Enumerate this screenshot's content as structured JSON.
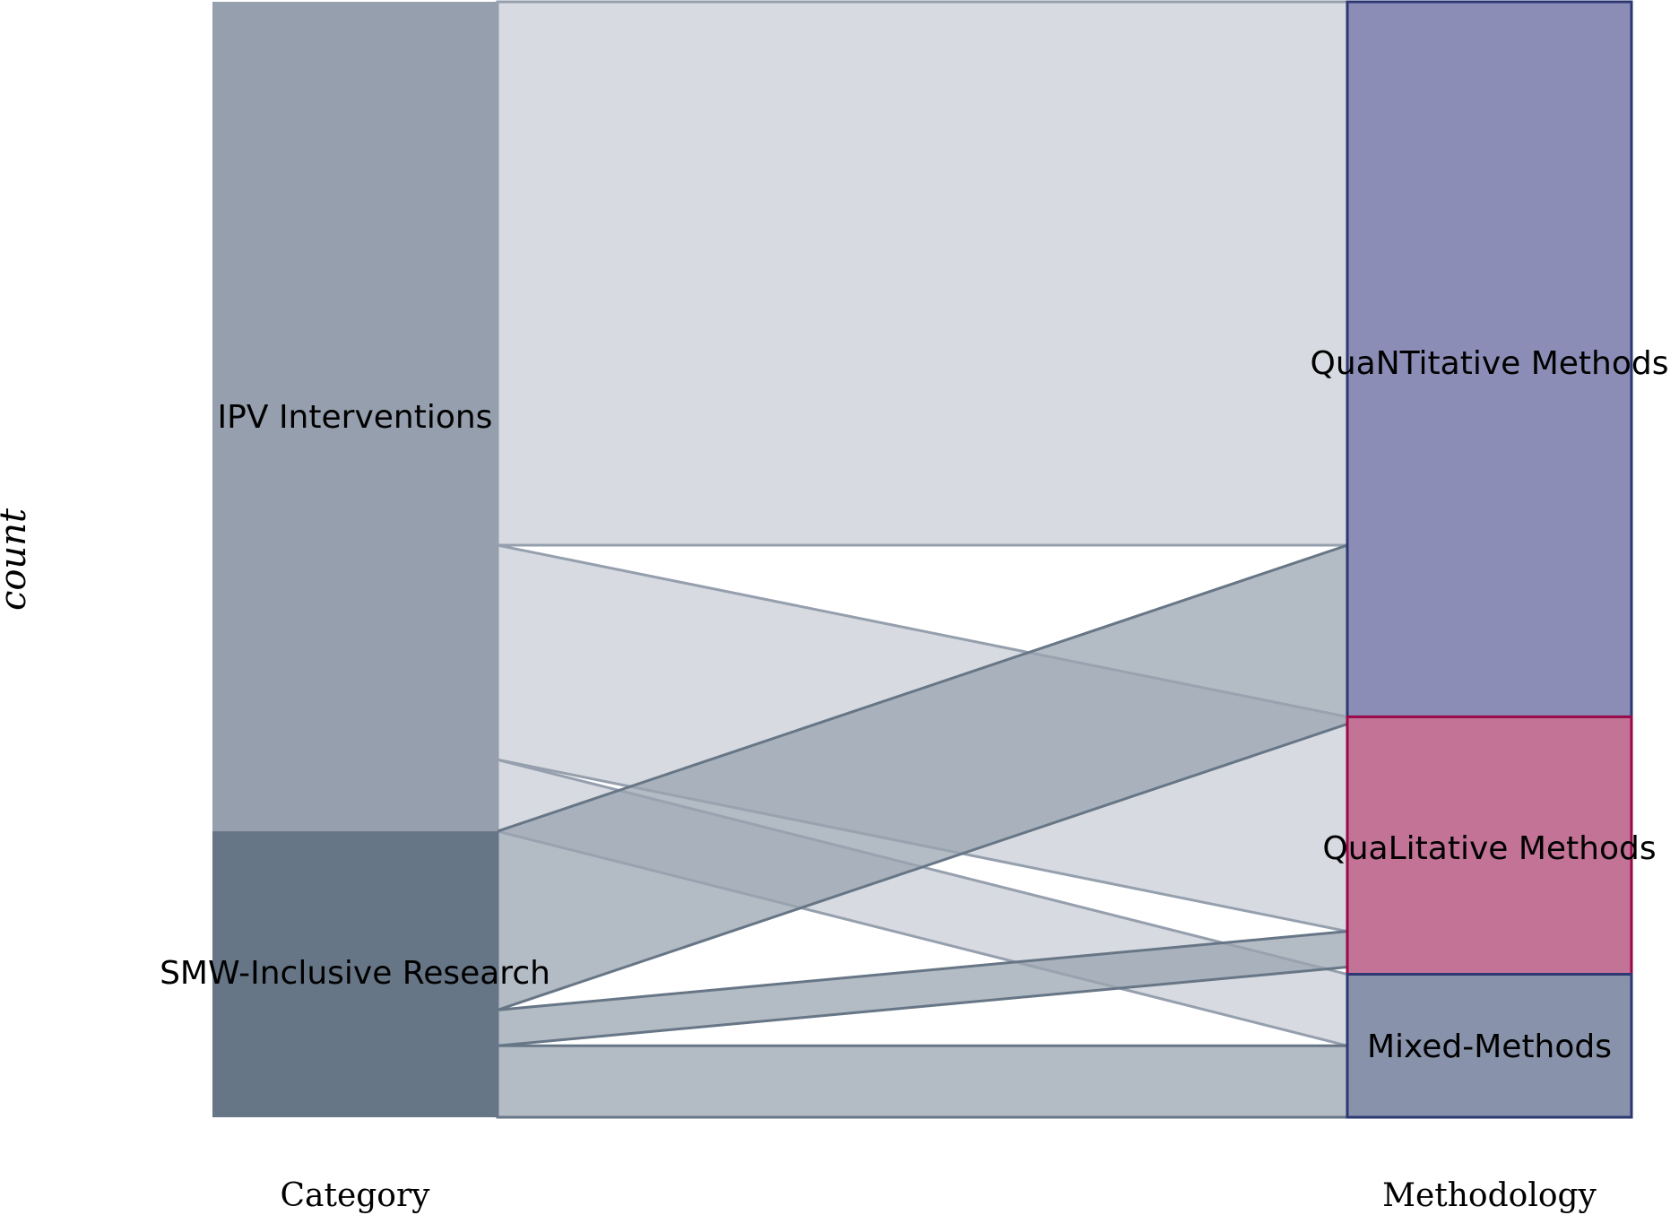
{
  "chart_data": {
    "type": "alluvial",
    "ylabel": "count",
    "axes": [
      {
        "label": "Category",
        "strata": [
          {
            "name": "IPV Interventions",
            "value": 29,
            "fill": "#959fad",
            "stroke": "none"
          },
          {
            "name": "SMW-Inclusive Research",
            "value": 10,
            "fill": "#677686",
            "stroke": "none"
          }
        ]
      },
      {
        "label": "Methodology",
        "strata": [
          {
            "name": "QuaNTitative Methods",
            "value": 25,
            "fill": "#8b8db6",
            "stroke": "#2d3873"
          },
          {
            "name": "QuaLitative Methods",
            "value": 9,
            "fill": "#c37396",
            "stroke": "#9a0a4a"
          },
          {
            "name": "Mixed-Methods",
            "value": 5,
            "fill": "#8892aa",
            "stroke": "#2d3873"
          }
        ]
      }
    ],
    "flows": [
      {
        "from": "IPV Interventions",
        "to": "QuaNTitative Methods",
        "value": 19
      },
      {
        "from": "IPV Interventions",
        "to": "QuaLitative Methods",
        "value": 7.5
      },
      {
        "from": "IPV Interventions",
        "to": "Mixed-Methods",
        "value": 2.5
      },
      {
        "from": "SMW-Inclusive Research",
        "to": "QuaNTitative Methods",
        "value": 6.25
      },
      {
        "from": "SMW-Inclusive Research",
        "to": "QuaLitative Methods",
        "value": 1.25
      },
      {
        "from": "SMW-Inclusive Research",
        "to": "Mixed-Methods",
        "value": 2.5
      }
    ],
    "flow_colors": {
      "IPV Interventions": {
        "fill": "#c9ced6",
        "stroke": "#959fad"
      },
      "SMW-Inclusive Research": {
        "fill": "#99a4b0",
        "stroke": "#677686"
      }
    },
    "flow_opacity": 0.75,
    "grid": false,
    "legend": "none"
  }
}
